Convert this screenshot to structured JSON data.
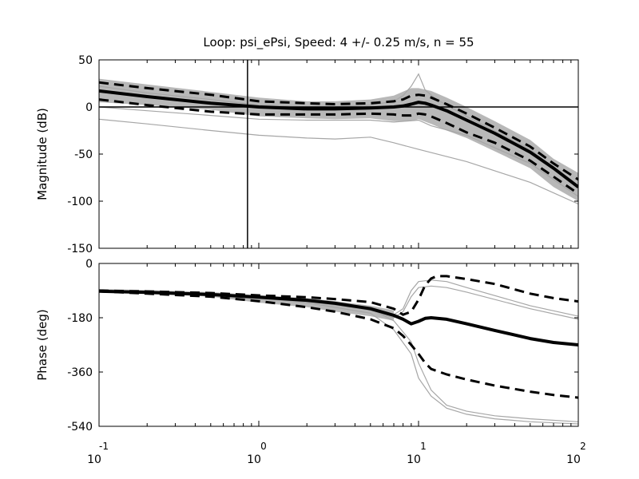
{
  "chart_data": {
    "type": "line",
    "title": "Loop: psi_ePsi, Speed: 4 +/- 0.25 m/s, n = 55",
    "x_scale": "log10",
    "xlim": [
      0.1,
      100
    ],
    "x_ticks": [
      {
        "base": "10",
        "exp": "-1"
      },
      {
        "base": "10",
        "exp": "0"
      },
      {
        "base": "10",
        "exp": "1"
      },
      {
        "base": "10",
        "exp": "2"
      }
    ],
    "panels": [
      {
        "id": "magnitude",
        "ylabel": "Magnitude (dB)",
        "ylim": [
          -150,
          50
        ],
        "yticks": [
          "50",
          "0",
          "-50",
          "-100",
          "-150"
        ],
        "ytick_values": [
          50,
          0,
          -50,
          -100,
          -150
        ],
        "reference_lines": {
          "horizontal_y": 0,
          "vertical_x": 0.85
        },
        "band": {
          "x": [
            0.1,
            0.2,
            0.5,
            1,
            2,
            3,
            5,
            7,
            9,
            10,
            12,
            15,
            20,
            30,
            50,
            70,
            100
          ],
          "upper": [
            30,
            24,
            16,
            10,
            6,
            6,
            8,
            12,
            20,
            20,
            17,
            10,
            0,
            -15,
            -35,
            -55,
            -70
          ],
          "lower": [
            5,
            2,
            -3,
            -10,
            -12,
            -13,
            -12,
            -15,
            -15,
            -13,
            -18,
            -25,
            -33,
            -47,
            -65,
            -85,
            -100
          ]
        },
        "series": [
          {
            "style": "solid",
            "x": [
              0.1,
              0.2,
              0.5,
              1,
              2,
              3,
              5,
              7,
              8,
              9,
              10,
              11,
              12,
              15,
              20,
              30,
              50,
              70,
              100
            ],
            "values": [
              17,
              11,
              4,
              0,
              -2,
              -2,
              -1,
              0,
              1,
              3,
              5,
              4,
              2,
              -4,
              -14,
              -28,
              -48,
              -65,
              -85
            ]
          },
          {
            "style": "dashed",
            "x": [
              0.1,
              0.2,
              0.5,
              1,
              2,
              3,
              5,
              7,
              8,
              9,
              10,
              11,
              12,
              15,
              20,
              30,
              50,
              70,
              100
            ],
            "values": [
              26,
              20,
              13,
              6,
              4,
              3,
              4,
              6,
              8,
              12,
              13,
              12,
              10,
              3,
              -7,
              -22,
              -42,
              -60,
              -77
            ]
          },
          {
            "style": "dashed",
            "x": [
              0.1,
              0.2,
              0.5,
              1,
              2,
              3,
              5,
              7,
              8,
              9,
              10,
              11,
              12,
              15,
              20,
              30,
              50,
              70,
              100
            ],
            "values": [
              8,
              2,
              -5,
              -8,
              -8,
              -8,
              -7,
              -8,
              -9,
              -9,
              -7,
              -8,
              -10,
              -17,
              -27,
              -38,
              -57,
              -74,
              -92
            ]
          },
          {
            "style": "gray",
            "x": [
              0.1,
              0.2,
              0.5,
              1,
              2,
              3,
              5,
              7,
              10,
              20,
              50,
              100
            ],
            "values": [
              -13,
              -18,
              -25,
              -30,
              -33,
              -34,
              -32,
              -38,
              -45,
              -58,
              -80,
              -103
            ]
          },
          {
            "style": "gray",
            "x": [
              0.1,
              0.2,
              0.5,
              1,
              2,
              3,
              5,
              7,
              8,
              9,
              10,
              11,
              13,
              20,
              50,
              100
            ],
            "values": [
              22,
              15,
              8,
              2,
              0,
              0,
              2,
              6,
              12,
              22,
              35,
              18,
              8,
              -10,
              -45,
              -85
            ]
          },
          {
            "style": "gray",
            "x": [
              0.1,
              0.2,
              0.5,
              1,
              2,
              3,
              5,
              7,
              10,
              12,
              20,
              50,
              100
            ],
            "values": [
              0,
              -4,
              -9,
              -13,
              -14,
              -14,
              -14,
              -16,
              -14,
              -20,
              -30,
              -60,
              -95
            ]
          }
        ]
      },
      {
        "id": "phase",
        "ylabel": "Phase (deg)",
        "ylim": [
          -540,
          0
        ],
        "yticks": [
          "0",
          "-180",
          "-360",
          "-540"
        ],
        "ytick_values": [
          0,
          -180,
          -360,
          -540
        ],
        "band_low_freq": {
          "x": [
            0.1,
            0.2,
            0.5,
            1,
            2,
            3,
            5,
            7
          ],
          "upper": [
            -85,
            -88,
            -95,
            -105,
            -115,
            -125,
            -140,
            -155
          ],
          "lower": [
            -95,
            -100,
            -110,
            -130,
            -145,
            -160,
            -175,
            -190
          ]
        },
        "series": [
          {
            "style": "solid",
            "x": [
              0.1,
              0.2,
              0.5,
              1,
              2,
              3,
              5,
              7,
              8,
              9,
              10,
              11,
              12,
              15,
              20,
              30,
              50,
              70,
              100
            ],
            "values": [
              -92,
              -96,
              -103,
              -112,
              -122,
              -132,
              -150,
              -172,
              -185,
              -200,
              -192,
              -182,
              -180,
              -185,
              -200,
              -222,
              -249,
              -262,
              -270
            ]
          },
          {
            "style": "dashed",
            "x": [
              0.1,
              0.2,
              0.5,
              1,
              2,
              3,
              5,
              7,
              8,
              9,
              10,
              11,
              12,
              13,
              15,
              20,
              30,
              50,
              70,
              100
            ],
            "values": [
              -90,
              -93,
              -98,
              -106,
              -112,
              -118,
              -128,
              -150,
              -170,
              -160,
              -120,
              -72,
              -50,
              -42,
              -42,
              -52,
              -68,
              -100,
              -115,
              -126
            ]
          },
          {
            "style": "dashed",
            "x": [
              0.1,
              0.2,
              0.5,
              1,
              2,
              3,
              5,
              7,
              8,
              9,
              10,
              11,
              12,
              15,
              20,
              30,
              50,
              70,
              100
            ],
            "values": [
              -92,
              -100,
              -110,
              -125,
              -145,
              -160,
              -185,
              -215,
              -240,
              -270,
              -300,
              -330,
              -350,
              -368,
              -385,
              -405,
              -425,
              -436,
              -445
            ]
          },
          {
            "style": "gray",
            "x": [
              0.1,
              0.5,
              1,
              2,
              5,
              7,
              9,
              10,
              12,
              15,
              20,
              30,
              50,
              100
            ],
            "values": [
              -90,
              -100,
              -110,
              -120,
              -150,
              -190,
              -260,
              -330,
              -420,
              -470,
              -490,
              -505,
              -515,
              -525
            ]
          },
          {
            "style": "gray",
            "x": [
              0.1,
              0.5,
              1,
              2,
              5,
              7,
              8,
              9,
              10,
              12,
              15,
              20,
              50,
              100
            ],
            "values": [
              -90,
              -100,
              -110,
              -120,
              -145,
              -170,
              -150,
              -90,
              -60,
              -55,
              -60,
              -80,
              -140,
              -175
            ]
          },
          {
            "style": "gray",
            "x": [
              0.1,
              0.5,
              1,
              2,
              5,
              7,
              9,
              10,
              12,
              15,
              20,
              30,
              50,
              100
            ],
            "values": [
              -90,
              -102,
              -115,
              -130,
              -165,
              -220,
              -300,
              -380,
              -440,
              -480,
              -500,
              -515,
              -525,
              -532
            ]
          },
          {
            "style": "gray",
            "x": [
              0.1,
              0.5,
              1,
              2,
              5,
              7,
              8,
              9,
              10,
              12,
              15,
              20,
              50,
              100
            ],
            "values": [
              -90,
              -100,
              -112,
              -125,
              -155,
              -180,
              -160,
              -110,
              -80,
              -75,
              -80,
              -95,
              -150,
              -185
            ]
          }
        ]
      }
    ]
  }
}
